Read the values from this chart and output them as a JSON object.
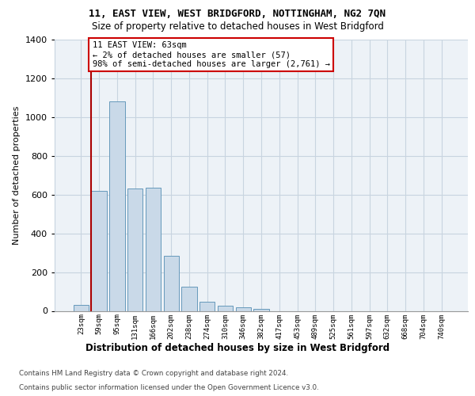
{
  "title1": "11, EAST VIEW, WEST BRIDGFORD, NOTTINGHAM, NG2 7QN",
  "title2": "Size of property relative to detached houses in West Bridgford",
  "xlabel": "Distribution of detached houses by size in West Bridgford",
  "ylabel": "Number of detached properties",
  "footer1": "Contains HM Land Registry data © Crown copyright and database right 2024.",
  "footer2": "Contains public sector information licensed under the Open Government Licence v3.0.",
  "categories": [
    "23sqm",
    "59sqm",
    "95sqm",
    "131sqm",
    "166sqm",
    "202sqm",
    "238sqm",
    "274sqm",
    "310sqm",
    "346sqm",
    "382sqm",
    "417sqm",
    "453sqm",
    "489sqm",
    "525sqm",
    "561sqm",
    "597sqm",
    "632sqm",
    "668sqm",
    "704sqm",
    "740sqm"
  ],
  "bar_values": [
    30,
    620,
    1080,
    630,
    635,
    285,
    125,
    45,
    25,
    20,
    10,
    0,
    0,
    0,
    0,
    0,
    0,
    0,
    0,
    0,
    0
  ],
  "bar_color": "#c9d9e8",
  "bar_edge_color": "#6699bb",
  "marker_color": "#aa0000",
  "annotation_line1": "11 EAST VIEW: 63sqm",
  "annotation_line2": "← 2% of detached houses are smaller (57)",
  "annotation_line3": "98% of semi-detached houses are larger (2,761) →",
  "annotation_box_edgecolor": "#cc0000",
  "ylim": [
    0,
    1400
  ],
  "yticks": [
    0,
    200,
    400,
    600,
    800,
    1000,
    1200,
    1400
  ],
  "axes_facecolor": "#edf2f7",
  "grid_color": "#c8d4e0",
  "fig_facecolor": "#ffffff",
  "bar_width": 0.85
}
